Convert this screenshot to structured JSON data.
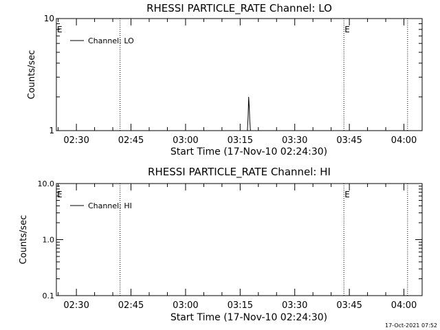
{
  "footer": {
    "timestamp": "17-Oct-2021 07:52"
  },
  "chart_data": [
    {
      "type": "line",
      "title": "RHESSI PARTICLE_RATE Channel: LO",
      "xlabel": "Start Time (17-Nov-10 02:24:30)",
      "ylabel": "Counts/sec",
      "yscale": "log",
      "xlim": [
        "02:24:30",
        "04:05:00"
      ],
      "ylim": [
        1,
        10
      ],
      "xticks": [
        "02:30",
        "02:45",
        "03:00",
        "03:15",
        "03:30",
        "03:45",
        "04:00"
      ],
      "yticks": [
        {
          "value": 1,
          "label": "1"
        },
        {
          "value": 10,
          "label": "10"
        }
      ],
      "legend": {
        "position": "top-left",
        "entries": [
          "Channel: LO"
        ]
      },
      "vlines": [
        "02:42:00",
        "03:43:30",
        "04:01:00"
      ],
      "annotations": [
        {
          "text": "E",
          "time": "02:24:30"
        },
        {
          "text": "E",
          "time": "03:43:30"
        }
      ],
      "series": [
        {
          "name": "Channel: LO",
          "x": [
            "03:17:00",
            "03:17:10",
            "03:17:20",
            "03:17:30",
            "03:17:40",
            "03:17:50",
            "03:18:00"
          ],
          "y": [
            1,
            1.3,
            2.0,
            1.6,
            1.2,
            1.0,
            1
          ]
        }
      ]
    },
    {
      "type": "line",
      "title": "RHESSI PARTICLE_RATE Channel: HI",
      "xlabel": "Start Time (17-Nov-10 02:24:30)",
      "ylabel": "Counts/sec",
      "yscale": "log",
      "xlim": [
        "02:24:30",
        "04:05:00"
      ],
      "ylim": [
        0.1,
        10
      ],
      "xticks": [
        "02:30",
        "02:45",
        "03:00",
        "03:15",
        "03:30",
        "03:45",
        "04:00"
      ],
      "yticks": [
        {
          "value": 0.1,
          "label": "0.1"
        },
        {
          "value": 1,
          "label": "1.0"
        },
        {
          "value": 10,
          "label": "10.0"
        }
      ],
      "legend": {
        "position": "top-left",
        "entries": [
          "Channel: HI"
        ]
      },
      "vlines": [
        "02:42:00",
        "03:43:30",
        "04:01:00"
      ],
      "annotations": [
        {
          "text": "E",
          "time": "02:24:30"
        },
        {
          "text": "E",
          "time": "03:43:30"
        }
      ],
      "series": [
        {
          "name": "Channel: HI",
          "x": [],
          "y": []
        }
      ]
    }
  ]
}
